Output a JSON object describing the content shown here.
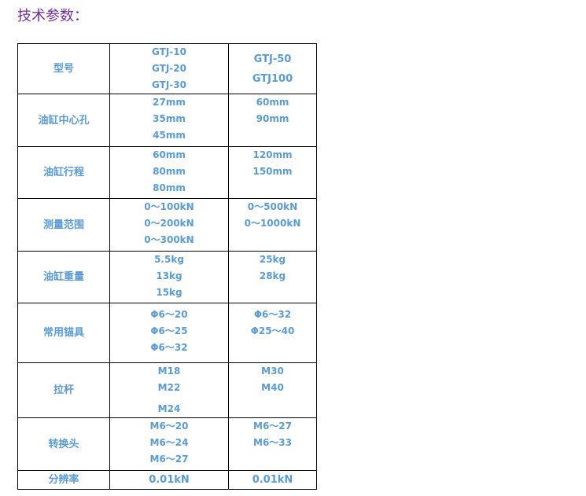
{
  "title": "技术参数：",
  "rows": [
    {
      "label": "型号",
      "a": [
        "GTJ-10",
        "GTJ-20",
        "GTJ-30"
      ],
      "b": [
        "GTJ-50",
        "GTJ100"
      ]
    },
    {
      "label": "油缸中心孔",
      "a": [
        "27mm",
        "35mm",
        "45mm"
      ],
      "b": [
        "60mm",
        "90mm"
      ]
    },
    {
      "label": "油缸行程",
      "a": [
        "60mm",
        "80mm",
        "80mm"
      ],
      "b": [
        "120mm",
        "150mm"
      ]
    },
    {
      "label": "测量范围",
      "a": [
        "0～100kN",
        "0～200kN",
        "0～300kN"
      ],
      "b": [
        "0～500kN",
        "0～1000kN"
      ]
    },
    {
      "label": "油缸重量",
      "a": [
        "5.5kg",
        "13kg",
        "15kg"
      ],
      "b": [
        "25kg",
        "28kg"
      ]
    },
    {
      "label": "常用锚具",
      "a": [
        "Φ6～20",
        "Φ6～25",
        "Φ6～32"
      ],
      "b": [
        "Φ6～32",
        "Φ25～40"
      ]
    },
    {
      "label": "拉杆",
      "a": [
        "M18",
        "M22",
        "M24"
      ],
      "b": [
        "M30",
        "M40"
      ]
    },
    {
      "label": "转换头",
      "a": [
        "M6～20",
        "M6～24",
        "M6～27"
      ],
      "b": [
        "M6～27",
        "M6～33"
      ]
    },
    {
      "label": "分辨率",
      "a": [
        "0.01kN"
      ],
      "b": [
        "0.01kN"
      ]
    }
  ]
}
